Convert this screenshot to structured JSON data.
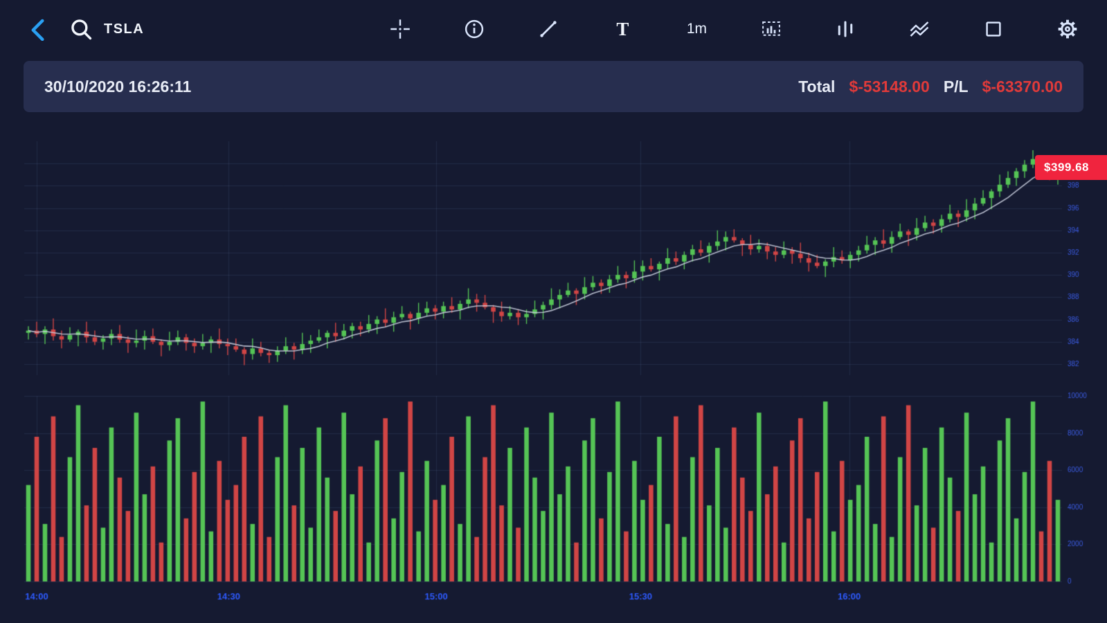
{
  "topbar": {
    "ticker": "TSLA",
    "text_tool": "T",
    "interval": "1m",
    "icons": [
      "back-icon",
      "search-icon",
      "crosshair-icon",
      "info-icon",
      "trendline-icon",
      "text-tool-icon",
      "interval-1m",
      "layout-icon",
      "volume-bars-icon",
      "indicators-icon",
      "shapes-icon",
      "settings-gear-icon"
    ]
  },
  "infobar": {
    "datetime": "30/10/2020 16:26:11",
    "total_label": "Total",
    "total_value": "$-53148.00",
    "pl_label": "P/L",
    "pl_value": "$-63370.00"
  },
  "colors": {
    "background": "#151a31",
    "panel": "#272e4f",
    "accent_blue": "#2aa0f2",
    "up": "#55c455",
    "down": "#d14545",
    "ma_line": "#c9cede",
    "grid": "rgba(120,140,200,0.14)",
    "axis_text": "#3b5be0",
    "time_text": "#2e5bff",
    "negative_text": "#e03a3a",
    "price_tag_bg": "#f0243e"
  },
  "chart_data": {
    "type": "candlestick",
    "symbol": "TSLA",
    "interval": "1m",
    "last_price_label": "$399.68",
    "last_price": 399.68,
    "price_axis": {
      "min": 381,
      "max": 402,
      "ticks": [
        382,
        384,
        386,
        388,
        390,
        392,
        394,
        396,
        398,
        400
      ]
    },
    "volume_axis": {
      "min": 0,
      "max": 10000,
      "ticks": [
        0,
        2000,
        4000,
        6000,
        8000,
        10000
      ]
    },
    "time_labels": [
      {
        "label": "14:00",
        "f": 0.012
      },
      {
        "label": "14:30",
        "f": 0.197
      },
      {
        "label": "15:00",
        "f": 0.397
      },
      {
        "label": "15:30",
        "f": 0.594
      },
      {
        "label": "16:00",
        "f": 0.795
      }
    ],
    "ma_window": 7,
    "candles": [
      [
        384.8,
        385.4,
        384.2,
        385.0,
        5200
      ],
      [
        385.0,
        385.8,
        384.4,
        384.7,
        7800
      ],
      [
        384.7,
        385.4,
        383.8,
        385.1,
        3100
      ],
      [
        385.1,
        386.1,
        384.1,
        384.5,
        8900
      ],
      [
        384.5,
        385.0,
        383.4,
        384.2,
        2400
      ],
      [
        384.2,
        385.3,
        384.0,
        384.6,
        6700
      ],
      [
        384.6,
        385.1,
        383.6,
        384.9,
        9500
      ],
      [
        384.9,
        385.8,
        383.9,
        384.4,
        4100
      ],
      [
        384.4,
        385.0,
        383.7,
        384.0,
        7200
      ],
      [
        384.0,
        384.6,
        383.3,
        384.3,
        2900
      ],
      [
        384.3,
        385.1,
        383.7,
        384.7,
        8300
      ],
      [
        384.7,
        385.5,
        383.9,
        384.2,
        5600
      ],
      [
        384.2,
        384.5,
        383.0,
        383.9,
        3800
      ],
      [
        383.9,
        385.1,
        383.5,
        384.1,
        9100
      ],
      [
        384.1,
        385.0,
        383.3,
        384.5,
        4700
      ],
      [
        384.5,
        385.2,
        383.8,
        384.0,
        6200
      ],
      [
        384.0,
        384.2,
        382.7,
        383.7,
        2100
      ],
      [
        383.7,
        384.9,
        383.2,
        384.0,
        7600
      ],
      [
        384.0,
        385.0,
        383.7,
        384.4,
        8800
      ],
      [
        384.4,
        384.7,
        383.2,
        383.9,
        3400
      ],
      [
        383.9,
        384.3,
        383.0,
        383.6,
        5900
      ],
      [
        383.6,
        384.7,
        383.3,
        383.9,
        9700
      ],
      [
        383.9,
        384.5,
        383.0,
        384.2,
        2700
      ],
      [
        384.2,
        385.2,
        383.4,
        383.8,
        6500
      ],
      [
        383.8,
        384.3,
        382.8,
        383.6,
        4400
      ],
      [
        383.6,
        384.3,
        383.1,
        383.3,
        5200
      ],
      [
        383.3,
        383.5,
        381.9,
        382.9,
        7800
      ],
      [
        382.9,
        384.3,
        382.4,
        383.4,
        3100
      ],
      [
        383.4,
        384.0,
        382.7,
        383.0,
        8900
      ],
      [
        383.0,
        383.3,
        382.1,
        382.8,
        2400
      ],
      [
        382.8,
        383.6,
        382.2,
        383.2,
        6700
      ],
      [
        383.2,
        384.4,
        382.9,
        383.6,
        9500
      ],
      [
        383.6,
        383.9,
        382.4,
        383.3,
        4100
      ],
      [
        383.3,
        384.8,
        382.9,
        383.8,
        7200
      ],
      [
        383.8,
        384.6,
        383.0,
        384.1,
        2900
      ],
      [
        384.1,
        385.1,
        383.9,
        384.4,
        8300
      ],
      [
        384.4,
        385.0,
        383.4,
        384.8,
        5600
      ],
      [
        384.8,
        385.7,
        384.0,
        384.5,
        3800
      ],
      [
        384.5,
        385.6,
        384.2,
        385.0,
        9100
      ],
      [
        385.0,
        385.7,
        384.3,
        385.4,
        4700
      ],
      [
        385.4,
        385.8,
        384.5,
        385.1,
        6200
      ],
      [
        385.1,
        386.4,
        384.8,
        385.6,
        2100
      ],
      [
        385.6,
        386.3,
        384.7,
        386.0,
        7600
      ],
      [
        386.0,
        387.0,
        385.3,
        385.7,
        8800
      ],
      [
        385.7,
        386.7,
        384.9,
        386.2,
        3400
      ],
      [
        386.2,
        387.2,
        386.0,
        386.5,
        5900
      ],
      [
        386.5,
        386.7,
        385.1,
        386.1,
        9700
      ],
      [
        386.1,
        387.5,
        385.6,
        386.6,
        2700
      ],
      [
        386.6,
        387.6,
        386.3,
        387.0,
        6500
      ],
      [
        387.0,
        387.3,
        386.0,
        386.7,
        4400
      ],
      [
        386.7,
        387.6,
        386.1,
        387.2,
        5200
      ],
      [
        387.2,
        388.0,
        386.6,
        386.9,
        7800
      ],
      [
        386.9,
        387.7,
        386.0,
        387.4,
        3100
      ],
      [
        387.4,
        388.8,
        387.0,
        387.8,
        8900
      ],
      [
        387.8,
        388.3,
        386.7,
        387.5,
        2400
      ],
      [
        387.5,
        388.2,
        386.9,
        387.1,
        6700
      ],
      [
        387.1,
        387.3,
        385.7,
        386.7,
        9500
      ],
      [
        386.7,
        387.6,
        385.8,
        386.3,
        4100
      ],
      [
        386.3,
        387.2,
        386.0,
        386.6,
        7200
      ],
      [
        386.6,
        386.9,
        385.5,
        386.2,
        2900
      ],
      [
        386.2,
        386.9,
        385.6,
        386.5,
        8300
      ],
      [
        386.5,
        387.7,
        386.2,
        386.9,
        5600
      ],
      [
        386.9,
        387.6,
        386.0,
        387.3,
        3800
      ],
      [
        387.3,
        388.8,
        386.9,
        387.8,
        9100
      ],
      [
        387.8,
        388.7,
        387.0,
        388.2,
        4700
      ],
      [
        388.2,
        389.3,
        388.0,
        388.6,
        6200
      ],
      [
        388.6,
        388.8,
        387.3,
        388.3,
        2100
      ],
      [
        388.3,
        389.8,
        387.8,
        388.9,
        7600
      ],
      [
        388.9,
        389.9,
        388.6,
        389.3,
        8800
      ],
      [
        389.3,
        389.6,
        388.3,
        389.0,
        3400
      ],
      [
        389.0,
        390.0,
        388.4,
        389.6,
        5900
      ],
      [
        389.6,
        390.8,
        389.3,
        390.0,
        9700
      ],
      [
        390.0,
        390.3,
        388.8,
        389.7,
        2700
      ],
      [
        389.7,
        391.3,
        389.3,
        390.3,
        6500
      ],
      [
        390.3,
        391.3,
        389.5,
        390.8,
        4400
      ],
      [
        390.8,
        391.5,
        390.3,
        390.5,
        5200
      ],
      [
        390.5,
        391.2,
        389.5,
        391.0,
        7800
      ],
      [
        391.0,
        392.4,
        390.5,
        391.5,
        3100
      ],
      [
        391.5,
        392.1,
        390.9,
        391.2,
        8900
      ],
      [
        391.2,
        392.1,
        390.5,
        391.8,
        2400
      ],
      [
        391.8,
        392.7,
        391.2,
        392.3,
        6700
      ],
      [
        392.3,
        393.1,
        391.7,
        392.0,
        9500
      ],
      [
        392.0,
        392.9,
        391.1,
        392.6,
        4100
      ],
      [
        392.6,
        394.0,
        392.2,
        393.0,
        7200
      ],
      [
        393.0,
        393.9,
        392.2,
        393.4,
        2900
      ],
      [
        393.4,
        394.1,
        392.9,
        393.1,
        8300
      ],
      [
        393.1,
        393.3,
        391.7,
        392.7,
        5600
      ],
      [
        392.7,
        393.6,
        391.8,
        392.3,
        3800
      ],
      [
        392.3,
        393.2,
        392.0,
        392.6,
        9100
      ],
      [
        392.6,
        392.9,
        391.4,
        392.1,
        4700
      ],
      [
        392.1,
        392.5,
        391.2,
        391.8,
        6200
      ],
      [
        391.8,
        393.0,
        391.5,
        392.2,
        2100
      ],
      [
        392.2,
        392.5,
        391.0,
        391.9,
        7600
      ],
      [
        391.9,
        392.9,
        391.1,
        391.5,
        8800
      ],
      [
        391.5,
        392.0,
        390.3,
        391.1,
        3400
      ],
      [
        391.1,
        391.8,
        390.6,
        390.8,
        5900
      ],
      [
        390.8,
        391.4,
        389.8,
        391.2,
        9700
      ],
      [
        391.2,
        392.5,
        390.7,
        391.6,
        2700
      ],
      [
        391.6,
        392.2,
        391.0,
        391.3,
        6500
      ],
      [
        391.3,
        392.1,
        390.6,
        391.8,
        4400
      ],
      [
        391.8,
        392.6,
        391.2,
        392.2,
        5200
      ],
      [
        392.2,
        393.5,
        391.9,
        392.7,
        7800
      ],
      [
        392.7,
        393.4,
        391.8,
        393.1,
        3100
      ],
      [
        393.1,
        394.1,
        392.4,
        392.8,
        8900
      ],
      [
        392.8,
        393.9,
        392.0,
        393.4,
        2400
      ],
      [
        393.4,
        394.6,
        393.2,
        393.9,
        6700
      ],
      [
        393.9,
        394.1,
        392.6,
        393.6,
        9500
      ],
      [
        393.6,
        395.1,
        393.1,
        394.2,
        4100
      ],
      [
        394.2,
        395.3,
        393.9,
        394.7,
        7200
      ],
      [
        394.7,
        395.0,
        393.7,
        394.4,
        2900
      ],
      [
        394.4,
        395.4,
        393.8,
        395.0,
        8300
      ],
      [
        395.0,
        396.3,
        394.7,
        395.5,
        5600
      ],
      [
        395.5,
        395.8,
        394.3,
        395.2,
        3800
      ],
      [
        395.2,
        396.8,
        394.8,
        395.8,
        9100
      ],
      [
        395.8,
        396.9,
        395.0,
        396.4,
        4700
      ],
      [
        396.4,
        397.6,
        396.2,
        396.9,
        6200
      ],
      [
        396.9,
        397.7,
        395.9,
        397.5,
        2100
      ],
      [
        397.5,
        399.0,
        397.0,
        398.1,
        7600
      ],
      [
        398.1,
        399.3,
        397.8,
        398.7,
        8800
      ],
      [
        398.7,
        399.6,
        398.0,
        399.3,
        3400
      ],
      [
        399.3,
        400.3,
        398.7,
        399.9,
        5900
      ],
      [
        399.9,
        401.2,
        399.6,
        400.4,
        9700
      ],
      [
        400.4,
        400.7,
        398.7,
        399.6,
        2700
      ],
      [
        399.6,
        400.6,
        398.5,
        398.9,
        6500
      ],
      [
        398.9,
        400.2,
        398.1,
        399.68,
        4400
      ]
    ]
  }
}
